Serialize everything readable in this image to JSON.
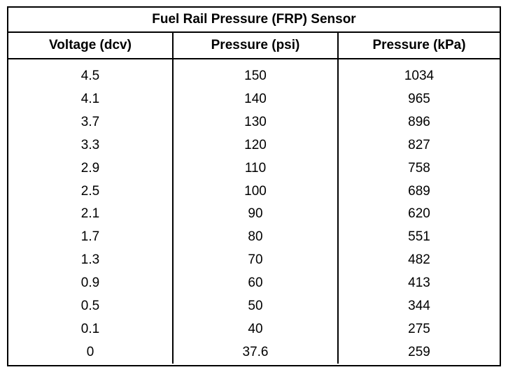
{
  "table": {
    "title": "Fuel Rail Pressure (FRP) Sensor",
    "headers": [
      "Voltage (dcv)",
      "Pressure (psi)",
      "Pressure (kPa)"
    ],
    "rows": [
      [
        "4.5",
        "150",
        "1034"
      ],
      [
        "4.1",
        "140",
        "965"
      ],
      [
        "3.7",
        "130",
        "896"
      ],
      [
        "3.3",
        "120",
        "827"
      ],
      [
        "2.9",
        "110",
        "758"
      ],
      [
        "2.5",
        "100",
        "689"
      ],
      [
        "2.1",
        "90",
        "620"
      ],
      [
        "1.7",
        "80",
        "551"
      ],
      [
        "1.3",
        "70",
        "482"
      ],
      [
        "0.9",
        "60",
        "413"
      ],
      [
        "0.5",
        "50",
        "344"
      ],
      [
        "0.1",
        "40",
        "275"
      ],
      [
        "0",
        "37.6",
        "259"
      ]
    ]
  }
}
